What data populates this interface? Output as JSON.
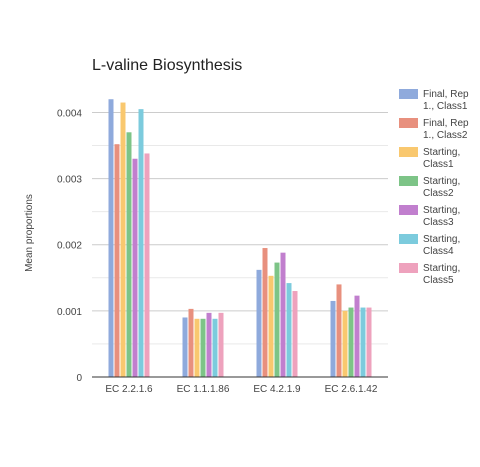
{
  "chart_data": {
    "type": "bar",
    "title": "L-valine Biosynthesis",
    "xlabel": "",
    "ylabel": "Mean proportions",
    "ylim": [
      0,
      0.0044
    ],
    "yticks": [
      "0",
      "0.001",
      "0.002",
      "0.003",
      "0.004"
    ],
    "yticks_values": [
      0,
      0.001,
      0.002,
      0.003,
      0.004
    ],
    "grid": true,
    "legend_position": "right",
    "categories": [
      "EC 2.2.1.6",
      "EC 1.1.1.86",
      "EC 4.2.1.9",
      "EC 2.6.1.42"
    ],
    "series": [
      {
        "name": "Final, Rep 1., Class1",
        "legend_lines": [
          "Final, Rep",
          "1., Class1"
        ],
        "color": "#8faadc",
        "values": [
          0.0042,
          0.0009,
          0.00162,
          0.00115
        ]
      },
      {
        "name": "Final, Rep 1., Class2",
        "legend_lines": [
          "Final, Rep",
          "1., Class2"
        ],
        "color": "#e8907e",
        "values": [
          0.00352,
          0.00103,
          0.00195,
          0.0014
        ]
      },
      {
        "name": "Starting, Class1",
        "legend_lines": [
          "Starting,",
          "Class1"
        ],
        "color": "#f9c86f",
        "values": [
          0.00415,
          0.00088,
          0.00153,
          0.001
        ]
      },
      {
        "name": "Starting, Class2",
        "legend_lines": [
          "Starting,",
          "Class2"
        ],
        "color": "#7dc487",
        "values": [
          0.0037,
          0.00088,
          0.00173,
          0.00105
        ]
      },
      {
        "name": "Starting, Class3",
        "legend_lines": [
          "Starting,",
          "Class3"
        ],
        "color": "#c17fce",
        "values": [
          0.0033,
          0.00097,
          0.00188,
          0.00123
        ]
      },
      {
        "name": "Starting, Class4",
        "legend_lines": [
          "Starting,",
          "Class4"
        ],
        "color": "#7ccbdd",
        "values": [
          0.00405,
          0.00088,
          0.00142,
          0.00105
        ]
      },
      {
        "name": "Starting, Class5",
        "legend_lines": [
          "Starting,",
          "Class5"
        ],
        "color": "#eea2bd",
        "values": [
          0.00338,
          0.00097,
          0.0013,
          0.00105
        ]
      }
    ]
  }
}
